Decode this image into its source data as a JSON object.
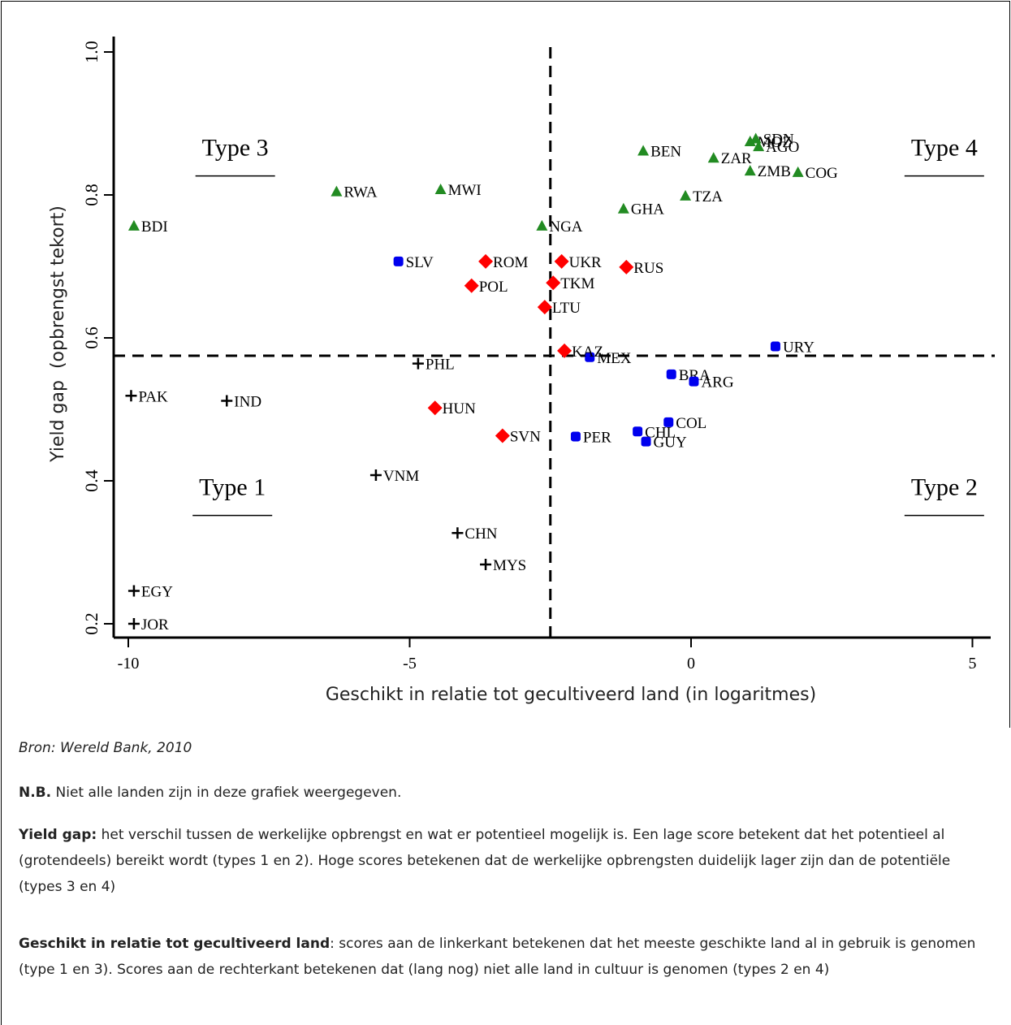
{
  "chart_data": {
    "type": "scatter",
    "xlabel": "Geschikt in relatie tot gecultiveerd land (in logaritmes)",
    "ylabel": "Yield gap  (opbrengst tekort)",
    "xlim": [
      -10.25,
      5.25
    ],
    "ylim": [
      0.16,
      1.02
    ],
    "x_ticks": [
      -10,
      -5,
      0,
      5
    ],
    "x_tick_labels": [
      "-10",
      "-5",
      "0",
      "5"
    ],
    "y_ticks": [
      0.2,
      0.4,
      0.6,
      0.8,
      1.0
    ],
    "y_tick_labels": [
      "0.2",
      "0.4",
      "0.6",
      "0.8",
      "1.0"
    ],
    "divider_x": -2.5,
    "divider_y": 0.575,
    "quadrant_labels": [
      {
        "label": "Type 3",
        "x": -8.1,
        "y": 0.855
      },
      {
        "label": "Type 4",
        "x": 4.5,
        "y": 0.855
      },
      {
        "label": "Type 1",
        "x": -8.15,
        "y": 0.38
      },
      {
        "label": "Type 2",
        "x": 4.5,
        "y": 0.38
      }
    ],
    "groups": [
      {
        "marker": "triangle",
        "color": "#228b22",
        "points": [
          {
            "label": "BDI",
            "x": -9.9,
            "y": 0.757
          },
          {
            "label": "RWA",
            "x": -6.3,
            "y": 0.805
          },
          {
            "label": "MWI",
            "x": -4.45,
            "y": 0.808
          },
          {
            "label": "NGA",
            "x": -2.65,
            "y": 0.757
          },
          {
            "label": "BEN",
            "x": -0.85,
            "y": 0.862
          },
          {
            "label": "ZAR",
            "x": 0.4,
            "y": 0.852
          },
          {
            "label": "MOZ",
            "x": 1.05,
            "y": 0.875
          },
          {
            "label": "SDN",
            "x": 1.15,
            "y": 0.879
          },
          {
            "label": "AGO",
            "x": 1.2,
            "y": 0.868
          },
          {
            "label": "ZMB",
            "x": 1.05,
            "y": 0.834
          },
          {
            "label": "COG",
            "x": 1.9,
            "y": 0.832
          },
          {
            "label": "TZA",
            "x": -0.1,
            "y": 0.799
          },
          {
            "label": "GHA",
            "x": -1.2,
            "y": 0.781
          }
        ]
      },
      {
        "marker": "square",
        "color": "#0000ee",
        "points": [
          {
            "label": "SLV",
            "x": -5.2,
            "y": 0.707
          },
          {
            "label": "URY",
            "x": 1.5,
            "y": 0.588
          },
          {
            "label": "MEX",
            "x": -1.8,
            "y": 0.573
          },
          {
            "label": "BRA",
            "x": -0.35,
            "y": 0.549
          },
          {
            "label": "ARG",
            "x": 0.05,
            "y": 0.539
          },
          {
            "label": "CHL",
            "x": -0.95,
            "y": 0.469
          },
          {
            "label": "COL",
            "x": -0.4,
            "y": 0.482
          },
          {
            "label": "GUY",
            "x": -0.8,
            "y": 0.455
          },
          {
            "label": "PER",
            "x": -2.05,
            "y": 0.462
          }
        ]
      },
      {
        "marker": "diamond",
        "color": "#ff0000",
        "points": [
          {
            "label": "ROM",
            "x": -3.65,
            "y": 0.707
          },
          {
            "label": "UKR",
            "x": -2.3,
            "y": 0.707
          },
          {
            "label": "RUS",
            "x": -1.15,
            "y": 0.699
          },
          {
            "label": "POL",
            "x": -3.9,
            "y": 0.673
          },
          {
            "label": "TKM",
            "x": -2.45,
            "y": 0.677
          },
          {
            "label": "LTU",
            "x": -2.6,
            "y": 0.643
          },
          {
            "label": "KAZ",
            "x": -2.25,
            "y": 0.582
          },
          {
            "label": "HUN",
            "x": -4.55,
            "y": 0.502
          },
          {
            "label": "SVN",
            "x": -3.35,
            "y": 0.463
          }
        ]
      },
      {
        "marker": "plus",
        "color": "#000000",
        "points": [
          {
            "label": "PHL",
            "x": -4.85,
            "y": 0.564
          },
          {
            "label": "PAK",
            "x": -9.95,
            "y": 0.519
          },
          {
            "label": "IND",
            "x": -8.25,
            "y": 0.512
          },
          {
            "label": "VNM",
            "x": -5.6,
            "y": 0.408
          },
          {
            "label": "CHN",
            "x": -4.15,
            "y": 0.327
          },
          {
            "label": "MYS",
            "x": -3.65,
            "y": 0.283
          },
          {
            "label": "EGY",
            "x": -9.9,
            "y": 0.246
          },
          {
            "label": "JOR",
            "x": -9.9,
            "y": 0.2
          }
        ]
      }
    ]
  },
  "notes": {
    "source": "Bron: Wereld Bank, 2010",
    "nb_label": "N.B.",
    "nb_text": " Niet alle landen zijn in deze grafiek weergegeven.",
    "yield_label": "Yield gap:",
    "yield_text": " het verschil tussen de werkelijke opbrengst en wat er potentieel mogelijk is. Een lage score betekent dat het potentieel al (grotendeels) bereikt wordt (types 1 en 2). Hoge scores betekenen dat de werkelijke opbrengsten duidelijk lager zijn dan de potentiële (types 3 en 4)",
    "land_label": "Geschikt in relatie tot gecultiveerd land",
    "land_text": ": scores aan de linkerkant betekenen dat het meeste geschikte land al in gebruik is genomen (type 1 en 3). Scores aan de rechterkant betekenen dat (lang nog) niet alle land in cultuur is genomen (types 2 en 4)"
  }
}
